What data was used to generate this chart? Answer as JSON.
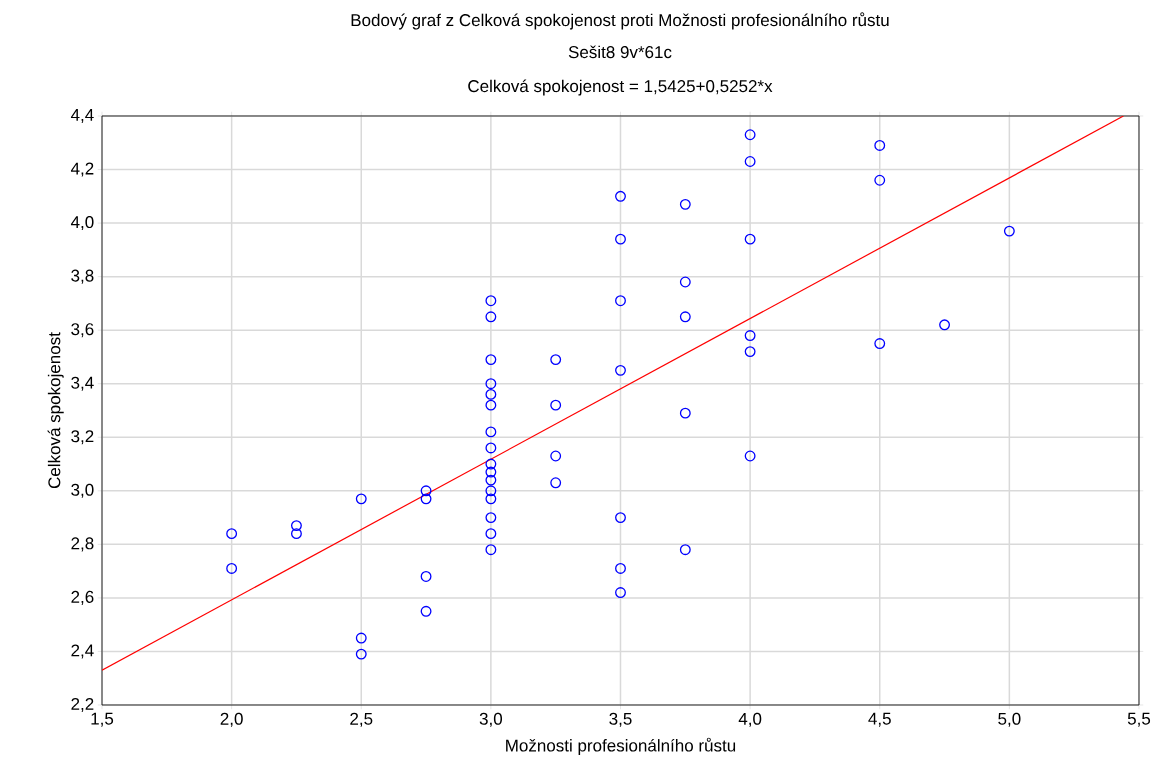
{
  "chart_data": {
    "type": "scatter",
    "title": "Bodový graf z Celková spokojenost proti Možnosti profesionálního růstu",
    "subtitle": "Sešit8 9v*61c",
    "annotations": [
      "Celková spokojenost = 1,5425+0,5252*x"
    ],
    "xlabel": "Možnosti profesionálního růstu",
    "ylabel": "Celková spokojenost",
    "series": [
      {
        "color": "#0000ff",
        "marker": "circle",
        "x": [
          2.0,
          2.0,
          2.25,
          2.25,
          2.5,
          2.5,
          2.5,
          2.75,
          2.75,
          2.75,
          2.75,
          3.0,
          3.0,
          3.0,
          3.0,
          3.0,
          3.0,
          3.0,
          3.0,
          3.0,
          3.0,
          3.0,
          3.0,
          3.0,
          3.0,
          3.0,
          3.0,
          3.25,
          3.25,
          3.25,
          3.25,
          3.5,
          3.5,
          3.5,
          3.5,
          3.5,
          3.5,
          3.5,
          3.75,
          3.75,
          3.75,
          3.75,
          3.75,
          4.0,
          4.0,
          4.0,
          4.0,
          4.0,
          4.0,
          4.5,
          4.5,
          4.5,
          4.75,
          5.0
        ],
        "values": [
          2.84,
          2.71,
          2.87,
          2.84,
          2.97,
          2.45,
          2.39,
          3.0,
          2.97,
          2.68,
          2.55,
          3.71,
          3.65,
          3.49,
          3.4,
          3.36,
          3.32,
          3.22,
          3.16,
          3.1,
          3.07,
          3.04,
          3.0,
          2.97,
          2.9,
          2.84,
          2.78,
          3.49,
          3.32,
          3.13,
          3.03,
          4.1,
          3.94,
          3.71,
          3.45,
          2.9,
          2.71,
          2.62,
          4.07,
          3.78,
          3.65,
          3.29,
          2.78,
          4.33,
          4.23,
          3.94,
          3.58,
          3.52,
          3.13,
          4.29,
          4.16,
          3.55,
          3.62,
          3.97
        ]
      },
      {
        "type": "line",
        "marker": "none",
        "color": "#ff0000",
        "x": [
          1.5,
          5.44
        ],
        "values": [
          2.33,
          4.4
        ]
      }
    ],
    "xlim": [
      1.5,
      5.5
    ],
    "xticks": [
      {
        "value": 1.5,
        "label": "1,5"
      },
      {
        "value": 2.0,
        "label": "2,0"
      },
      {
        "value": 2.5,
        "label": "2,5"
      },
      {
        "value": 3.0,
        "label": "3,0"
      },
      {
        "value": 3.5,
        "label": "3,5"
      },
      {
        "value": 4.0,
        "label": "4,0"
      },
      {
        "value": 4.5,
        "label": "4,5"
      },
      {
        "value": 5.0,
        "label": "5,0"
      },
      {
        "value": 5.5,
        "label": "5,5"
      }
    ],
    "ylim": [
      2.2,
      4.4
    ],
    "yticks": [
      {
        "value": 2.2,
        "label": "2,2"
      },
      {
        "value": 2.4,
        "label": "2,4"
      },
      {
        "value": 2.6,
        "label": "2,6"
      },
      {
        "value": 2.8,
        "label": "2,8"
      },
      {
        "value": 3.0,
        "label": "3,0"
      },
      {
        "value": 3.2,
        "label": "3,2"
      },
      {
        "value": 3.4,
        "label": "3,4"
      },
      {
        "value": 3.6,
        "label": "3,6"
      },
      {
        "value": 3.8,
        "label": "3,8"
      },
      {
        "value": 4.0,
        "label": "4,0"
      },
      {
        "value": 4.2,
        "label": "4,2"
      },
      {
        "value": 4.4,
        "label": "4,4"
      }
    ],
    "grid": true
  }
}
